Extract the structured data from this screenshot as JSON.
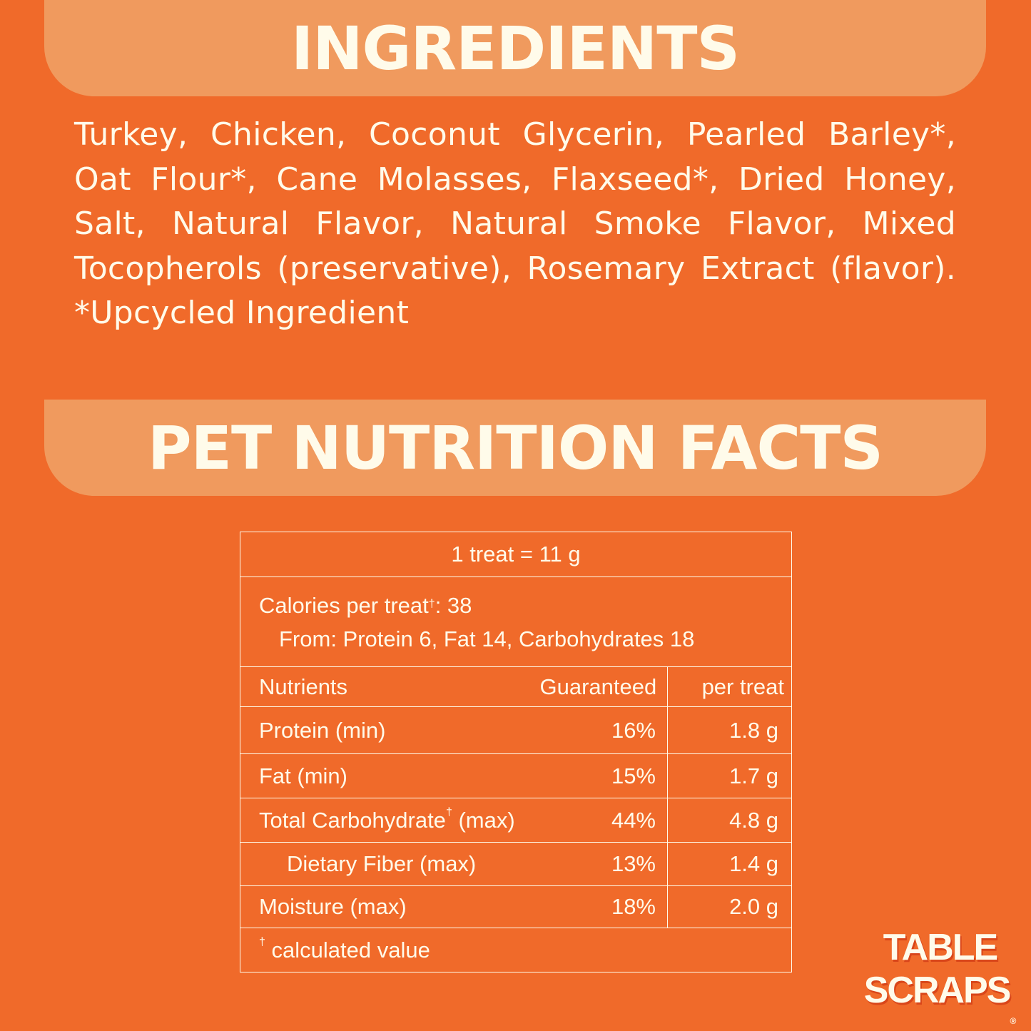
{
  "ingredients": {
    "title": "INGREDIENTS",
    "text": "Turkey, Chicken, Coconut Glycerin, Pearled Barley*, Oat Flour*, Cane Molasses, Flaxseed*, Dried Honey, Salt, Natural Flavor, Natural Smoke Flavor, Mixed Tocopherols (preservative), Rosemary Extract (flavor).  *Upcycled Ingredient"
  },
  "nutrition": {
    "title": "PET NUTRITION FACTS",
    "serving": "1 treat = 11 g",
    "calories_label": "Calories per treat",
    "calories_mark": "†",
    "calories_value": ": 38",
    "from": "From: Protein 6, Fat 14, Carbohydrates 18",
    "headers": [
      "Nutrients",
      "Guaranteed",
      "per treat"
    ],
    "rows": [
      {
        "name": "Protein (min)",
        "guaranteed": "16%",
        "per_treat": "1.8 g"
      },
      {
        "name": "Fat (min)",
        "guaranteed": "15%",
        "per_treat": "1.7 g"
      },
      {
        "name": "Total Carbohydrate",
        "mark": "†",
        "suffix": " (max)",
        "guaranteed": "44%",
        "per_treat": "4.8 g"
      },
      {
        "name": "Dietary Fiber (max)",
        "guaranteed": "13%",
        "per_treat": "1.4 g"
      },
      {
        "name": "Moisture (max)",
        "guaranteed": "18%",
        "per_treat": "2.0 g"
      }
    ],
    "footnote_mark": "†",
    "footnote": " calculated value"
  },
  "logo": {
    "line1": "TABLE",
    "line2": "SCRAPS",
    "mark": "®"
  },
  "colors": {
    "background": "#F06A2A",
    "banner": "#F09A5E",
    "text": "#FFFBEA"
  }
}
